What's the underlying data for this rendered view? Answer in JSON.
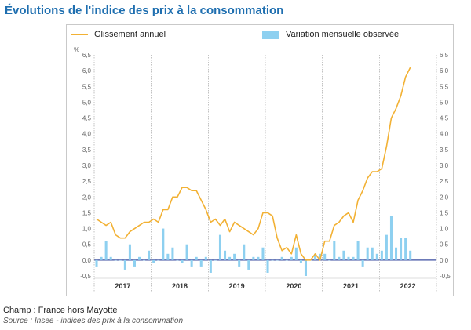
{
  "title": "Évolutions de l'indice des prix à la consommation",
  "footer": {
    "champ": "Champ : France hors Mayotte",
    "source": "Source : Insee - indices des prix à la consommation"
  },
  "chart_data": {
    "type": "line+bar",
    "legend": {
      "line": "Glissement annuel",
      "bars": "Variation mensuelle observée"
    },
    "unit_label": "%",
    "ylim": [
      -0.5,
      6.5
    ],
    "ytick_labels": [
      "-0,5",
      "0,0",
      "0,5",
      "1,0",
      "1,5",
      "2,0",
      "2,5",
      "3,0",
      "3,5",
      "4,0",
      "4,5",
      "5,0",
      "5,5",
      "6,0",
      "6,5"
    ],
    "years": [
      "2017",
      "2018",
      "2019",
      "2020",
      "2021",
      "2022"
    ],
    "colors": {
      "line": "#f2b134",
      "bars": "#8ed0f0"
    },
    "months_per_year": 12,
    "glissement_annuel": [
      1.3,
      1.2,
      1.1,
      1.2,
      0.8,
      0.7,
      0.7,
      0.9,
      1.0,
      1.1,
      1.2,
      1.2,
      1.3,
      1.2,
      1.6,
      1.6,
      2.0,
      2.0,
      2.3,
      2.3,
      2.2,
      2.2,
      1.9,
      1.6,
      1.2,
      1.3,
      1.1,
      1.3,
      0.9,
      1.2,
      1.1,
      1.0,
      0.9,
      0.8,
      1.0,
      1.5,
      1.5,
      1.4,
      0.7,
      0.3,
      0.4,
      0.2,
      0.8,
      0.2,
      0.0,
      0.0,
      0.2,
      0.0,
      0.6,
      0.6,
      1.1,
      1.2,
      1.4,
      1.5,
      1.2,
      1.9,
      2.2,
      2.6,
      2.8,
      2.8,
      2.9,
      3.6,
      4.5,
      4.8,
      5.2,
      5.8,
      6.1
    ],
    "variation_mensuelle": [
      -0.2,
      0.1,
      0.6,
      0.1,
      0.0,
      0.0,
      -0.3,
      0.5,
      -0.2,
      0.1,
      0.0,
      0.3,
      -0.1,
      0.0,
      1.0,
      0.2,
      0.4,
      0.0,
      -0.1,
      0.5,
      -0.2,
      0.1,
      -0.2,
      0.1,
      -0.4,
      0.0,
      0.8,
      0.3,
      0.1,
      0.2,
      -0.2,
      0.5,
      -0.3,
      0.1,
      0.1,
      0.4,
      -0.4,
      0.0,
      0.0,
      0.1,
      0.0,
      0.1,
      0.4,
      -0.1,
      -0.5,
      0.0,
      0.2,
      0.2,
      0.2,
      0.0,
      0.6,
      0.1,
      0.3,
      0.1,
      0.1,
      0.6,
      -0.2,
      0.4,
      0.4,
      0.2,
      0.3,
      0.8,
      1.4,
      0.4,
      0.7,
      0.7,
      0.3
    ]
  }
}
